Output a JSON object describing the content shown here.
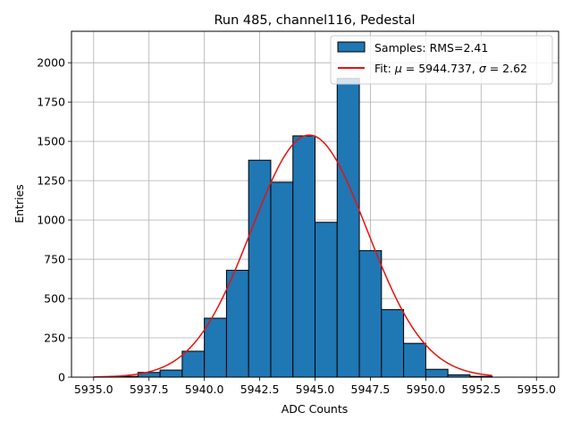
{
  "chart_data": {
    "type": "bar",
    "title": "Run 485, channel116, Pedestal",
    "xlabel": "ADC Counts",
    "ylabel": "Entries",
    "xlim": [
      5934.0,
      5956.0
    ],
    "ylim": [
      0,
      2200
    ],
    "xticks": [
      5935.0,
      5937.5,
      5940.0,
      5942.5,
      5945.0,
      5947.5,
      5950.0,
      5952.5,
      5955.0
    ],
    "xtick_labels": [
      "5935.0",
      "5937.5",
      "5940.0",
      "5942.5",
      "5945.0",
      "5947.5",
      "5950.0",
      "5952.5",
      "5955.0"
    ],
    "yticks": [
      0,
      250,
      500,
      750,
      1000,
      1250,
      1500,
      1750,
      2000
    ],
    "ytick_labels": [
      "0",
      "250",
      "500",
      "750",
      "1000",
      "1250",
      "1500",
      "1750",
      "2000"
    ],
    "grid": true,
    "legend_position": "top-right",
    "histogram": {
      "name": "Samples: RMS=2.41",
      "color": "#1f77b4",
      "edge_color": "#000000",
      "bin_edges": [
        5935,
        5936,
        5937,
        5938,
        5939,
        5940,
        5941,
        5942,
        5943,
        5944,
        5945,
        5946,
        5947,
        5948,
        5949,
        5950,
        5951,
        5952,
        5953
      ],
      "counts": [
        0,
        5,
        30,
        45,
        165,
        375,
        680,
        1380,
        1240,
        1535,
        985,
        1900,
        805,
        430,
        215,
        50,
        15,
        5
      ]
    },
    "fit": {
      "name_prefix": "Fit: ",
      "mu_symbol": "μ",
      "eq_mu": " = 5944.737, ",
      "sigma_symbol": "σ",
      "eq_sigma": " = 2.62",
      "mu": 5944.737,
      "sigma": 2.62,
      "amplitude": 1540,
      "x_range": [
        5935,
        5953
      ],
      "color": "#e8110f"
    }
  }
}
